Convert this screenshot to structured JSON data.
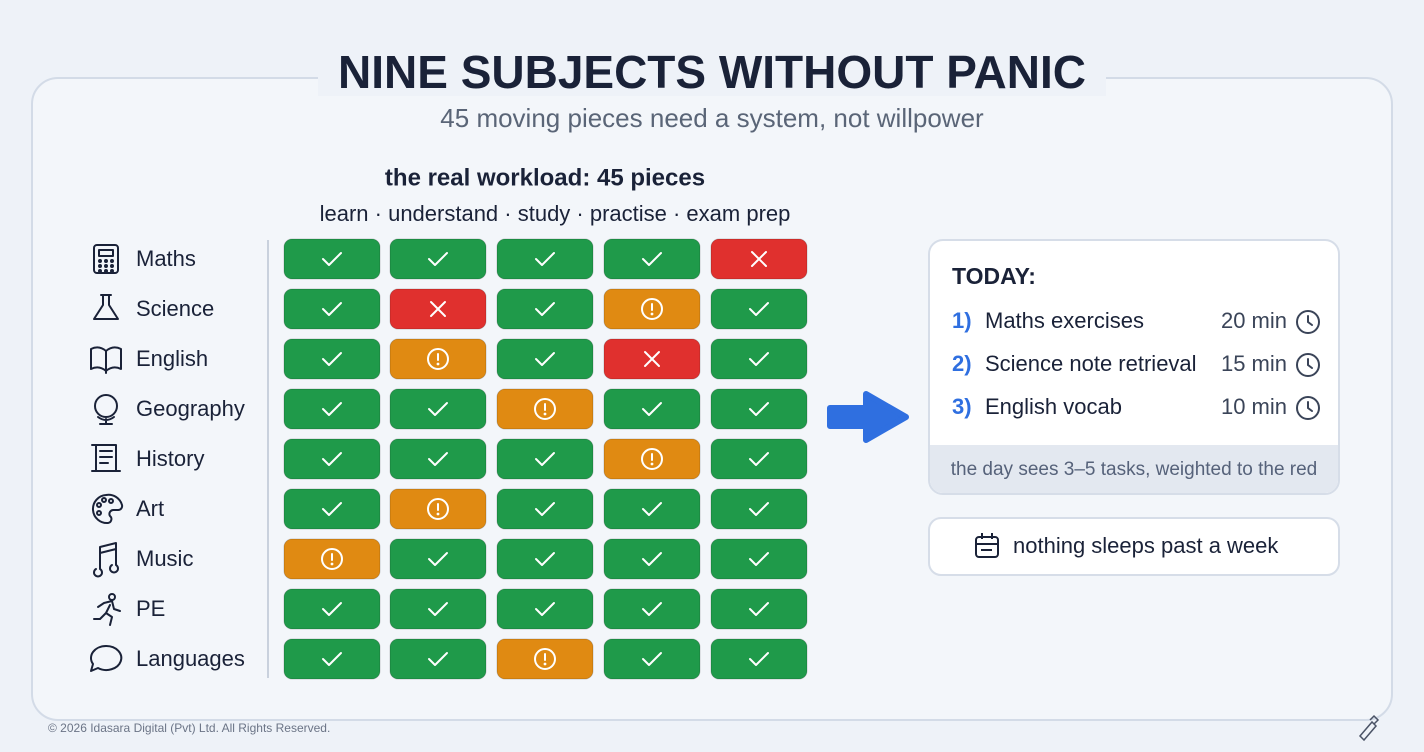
{
  "header": {
    "title": "NINE SUBJECTS WITHOUT PANIC",
    "subtitle": "45 moving pieces need a system, not willpower"
  },
  "grid": {
    "heading": "the real workload: 45 pieces",
    "columns": "learn · understand · study · practise · exam prep",
    "rows": [
      {
        "subject": "Maths",
        "status": [
          "ok",
          "ok",
          "ok",
          "ok",
          "miss"
        ]
      },
      {
        "subject": "Science",
        "status": [
          "ok",
          "miss",
          "ok",
          "warn",
          "ok"
        ]
      },
      {
        "subject": "English",
        "status": [
          "ok",
          "warn",
          "ok",
          "miss",
          "ok"
        ]
      },
      {
        "subject": "Geography",
        "status": [
          "ok",
          "ok",
          "warn",
          "ok",
          "ok"
        ]
      },
      {
        "subject": "History",
        "status": [
          "ok",
          "ok",
          "ok",
          "warn",
          "ok"
        ]
      },
      {
        "subject": "Art",
        "status": [
          "ok",
          "warn",
          "ok",
          "ok",
          "ok"
        ]
      },
      {
        "subject": "Music",
        "status": [
          "warn",
          "ok",
          "ok",
          "ok",
          "ok"
        ]
      },
      {
        "subject": "PE",
        "status": [
          "ok",
          "ok",
          "ok",
          "ok",
          "ok"
        ]
      },
      {
        "subject": "Languages",
        "status": [
          "ok",
          "ok",
          "warn",
          "ok",
          "ok"
        ]
      }
    ]
  },
  "today": {
    "title": "TODAY:",
    "tasks": [
      {
        "number": "1)",
        "label": "Maths exercises",
        "time": "20 min"
      },
      {
        "number": "2)",
        "label": "Science note retrieval",
        "time": "15 min"
      },
      {
        "number": "3)",
        "label": "English vocab",
        "time": "10 min"
      }
    ],
    "footer": "the day sees 3–5 tasks, weighted to the red"
  },
  "note": "nothing sleeps past a week",
  "copyright": "© 2026 Idasara Digital (Pvt) Ltd. All Rights Reserved."
}
